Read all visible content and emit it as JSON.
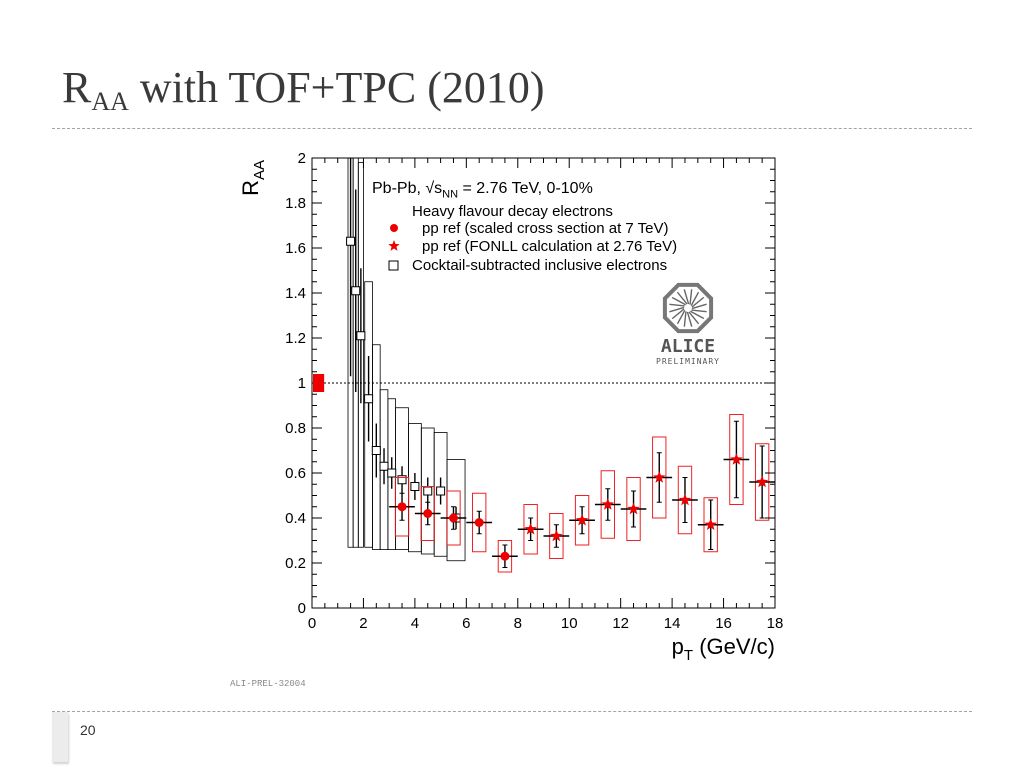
{
  "slide": {
    "title_main": "R",
    "title_sub": "AA",
    "title_rest": " with TOF+TPC (2010)",
    "page_number": "20"
  },
  "figure": {
    "reference_label": "ALI-PREL-32004",
    "logo_text": "ALICE",
    "logo_subtext": "PRELIMINARY"
  },
  "chart_data": {
    "type": "scatter",
    "title": "Pb-Pb, √s_NN = 2.76 TeV, 0-10%",
    "title_parts": {
      "pre": "Pb-Pb, √s",
      "sub": "NN",
      "post": " = 2.76 TeV, 0-10%"
    },
    "xlabel": "p_T (GeV/c)",
    "xlabel_parts": {
      "main": "p",
      "sub": "T",
      "post": " (GeV/c)"
    },
    "ylabel": "R_AA",
    "ylabel_parts": {
      "main": "R",
      "sub": "AA"
    },
    "xlim": [
      0,
      18
    ],
    "ylim": [
      0,
      2
    ],
    "x_ticks": [
      "0",
      "2",
      "4",
      "6",
      "8",
      "10",
      "12",
      "14",
      "16",
      "18"
    ],
    "y_ticks": [
      "0",
      "0.2",
      "0.4",
      "0.6",
      "0.8",
      "1",
      "1.2",
      "1.4",
      "1.6",
      "1.8",
      "2"
    ],
    "legend_header": "Heavy flavour decay electrons",
    "reference_line_y": 1,
    "normalization_uncertainty": {
      "x": 0.2,
      "low": 0.96,
      "high": 1.04,
      "color": "#ee0000"
    },
    "series": [
      {
        "name": "pp ref (scaled cross section at 7 TeV)",
        "marker": "circle",
        "color": "#ee0000",
        "points": [
          {
            "x": 3.5,
            "y": 0.45,
            "xerr": 0.5,
            "stat": 0.06,
            "sys": 0.13
          },
          {
            "x": 4.5,
            "y": 0.42,
            "xerr": 0.5,
            "stat": 0.05,
            "sys": 0.12
          },
          {
            "x": 5.5,
            "y": 0.4,
            "xerr": 0.5,
            "stat": 0.05,
            "sys": 0.12
          },
          {
            "x": 6.5,
            "y": 0.38,
            "xerr": 0.5,
            "stat": 0.05,
            "sys": 0.13
          },
          {
            "x": 7.5,
            "y": 0.23,
            "xerr": 0.5,
            "stat": 0.05,
            "sys": 0.07
          }
        ]
      },
      {
        "name": "pp ref (FONLL calculation at 2.76 TeV)",
        "marker": "star",
        "color": "#ee0000",
        "points": [
          {
            "x": 8.5,
            "y": 0.35,
            "xerr": 0.5,
            "stat": 0.05,
            "sys": 0.11
          },
          {
            "x": 9.5,
            "y": 0.32,
            "xerr": 0.5,
            "stat": 0.05,
            "sys": 0.1
          },
          {
            "x": 10.5,
            "y": 0.39,
            "xerr": 0.5,
            "stat": 0.06,
            "sys": 0.11
          },
          {
            "x": 11.5,
            "y": 0.46,
            "xerr": 0.5,
            "stat": 0.07,
            "sys": 0.15
          },
          {
            "x": 12.5,
            "y": 0.44,
            "xerr": 0.5,
            "stat": 0.08,
            "sys": 0.14
          },
          {
            "x": 13.5,
            "y": 0.58,
            "xerr": 0.5,
            "stat": 0.11,
            "sys": 0.18
          },
          {
            "x": 14.5,
            "y": 0.48,
            "xerr": 0.5,
            "stat": 0.1,
            "sys": 0.15
          },
          {
            "x": 15.5,
            "y": 0.37,
            "xerr": 0.5,
            "stat": 0.11,
            "sys": 0.12
          },
          {
            "x": 16.5,
            "y": 0.66,
            "xerr": 0.5,
            "stat": 0.17,
            "sys": 0.2
          },
          {
            "x": 17.5,
            "y": 0.56,
            "xerr": 0.5,
            "stat": 0.16,
            "sys": 0.17
          }
        ]
      },
      {
        "name": "Cocktail-subtracted inclusive electrons",
        "marker": "open-square",
        "color": "#000000",
        "points": [
          {
            "x": 1.5,
            "y": 1.63,
            "xerr": 0.1,
            "stat": 0.6,
            "sys_low": 0.27,
            "sys_high": 2.0
          },
          {
            "x": 1.7,
            "y": 1.41,
            "xerr": 0.1,
            "stat": 0.45,
            "sys_low": 0.27,
            "sys_high": 2.0
          },
          {
            "x": 1.9,
            "y": 1.21,
            "xerr": 0.1,
            "stat": 0.3,
            "sys_low": 0.27,
            "sys_high": 1.98
          },
          {
            "x": 2.2,
            "y": 0.93,
            "xerr": 0.15,
            "stat": 0.19,
            "sys_low": 0.27,
            "sys_high": 1.45
          },
          {
            "x": 2.5,
            "y": 0.7,
            "xerr": 0.15,
            "stat": 0.12,
            "sys_low": 0.26,
            "sys_high": 1.17
          },
          {
            "x": 2.8,
            "y": 0.63,
            "xerr": 0.15,
            "stat": 0.08,
            "sys_low": 0.26,
            "sys_high": 0.97
          },
          {
            "x": 3.1,
            "y": 0.6,
            "xerr": 0.15,
            "stat": 0.07,
            "sys_low": 0.26,
            "sys_high": 0.93
          },
          {
            "x": 3.5,
            "y": 0.57,
            "xerr": 0.25,
            "stat": 0.06,
            "sys_low": 0.26,
            "sys_high": 0.89
          },
          {
            "x": 4.0,
            "y": 0.54,
            "xerr": 0.25,
            "stat": 0.06,
            "sys_low": 0.25,
            "sys_high": 0.82
          },
          {
            "x": 4.5,
            "y": 0.52,
            "xerr": 0.25,
            "stat": 0.06,
            "sys_low": 0.24,
            "sys_high": 0.8
          },
          {
            "x": 5.0,
            "y": 0.52,
            "xerr": 0.25,
            "stat": 0.06,
            "sys_low": 0.23,
            "sys_high": 0.78
          },
          {
            "x": 5.6,
            "y": 0.4,
            "xerr": 0.35,
            "stat": 0.05,
            "sys_low": 0.21,
            "sys_high": 0.66
          }
        ]
      }
    ],
    "grid": false,
    "legend_position": "top-right"
  }
}
